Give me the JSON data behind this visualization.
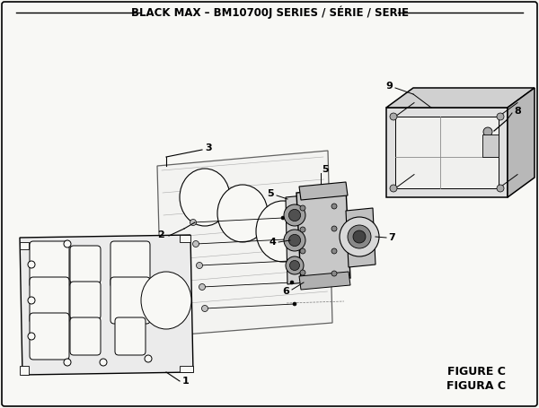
{
  "title": "BLACK MAX – BM10700J SERIES / SÉRIE / SERIE",
  "title_fontsize": 8.5,
  "figure_c_text": "FIGURE C",
  "figura_c_text": "FIGURA C",
  "bg_color": "#f5f5f0",
  "border_color": "#000000",
  "line_color": "#000000",
  "gray1": "#d0d0d0",
  "gray2": "#b0b0b0",
  "gray3": "#909090",
  "white": "#ffffff"
}
